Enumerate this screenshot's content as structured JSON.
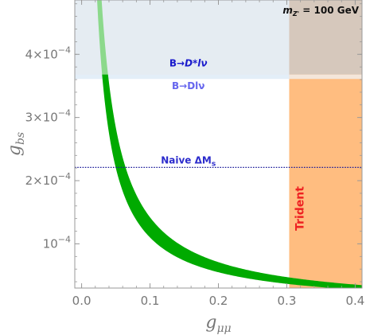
{
  "chart_data": {
    "type": "area",
    "xlabel": "g_μμ",
    "ylabel": "g_bs",
    "xlim": [
      -0.01,
      0.41
    ],
    "ylim": [
      3e-05,
      0.000486
    ],
    "x_ticks": [
      {
        "value": 0.0,
        "label": "0.0"
      },
      {
        "value": 0.1,
        "label": "0.1"
      },
      {
        "value": 0.2,
        "label": "0.2"
      },
      {
        "value": 0.3,
        "label": "0.3"
      },
      {
        "value": 0.4,
        "label": "0.4"
      }
    ],
    "y_ticks": [
      {
        "value": 0.0001,
        "mant": "10",
        "exp": "−4"
      },
      {
        "value": 0.0002,
        "mant": "2×10",
        "exp": "−4"
      },
      {
        "value": 0.0003,
        "mant": "3×10",
        "exp": "−4"
      },
      {
        "value": 0.0004,
        "mant": "4×10",
        "exp": "−4"
      }
    ],
    "band": {
      "color": "#00aa00",
      "lower_coeff": 1.1e-05,
      "upper_coeff": 1.42e-05,
      "x_from": 0.0225,
      "x_to": 0.41
    },
    "exclusions": [
      {
        "label_main": "B→",
        "label_rest": "D*lν",
        "region": "y_above",
        "y_min": 0.000368,
        "color": "#c5d5e3",
        "label_color": "#1a1acc"
      },
      {
        "label_main": "B→Dlν",
        "label_rest": "",
        "region": "y_above",
        "y_min": 0.000361,
        "color": "#e3eef8",
        "label_color": "#6666ee"
      },
      {
        "label": "Trident",
        "region": "x_above",
        "x_min": 0.3035,
        "color": "#ffbd80",
        "label_color": "#ee2222"
      }
    ],
    "reference_line": {
      "label": "Naive ΔM",
      "label_sub": "s",
      "y": 0.000221,
      "color": "#1a1a99",
      "style": "dotted"
    },
    "annotation": {
      "var": "m",
      "sub": "Z'",
      "text": " = 100 GeV"
    }
  }
}
